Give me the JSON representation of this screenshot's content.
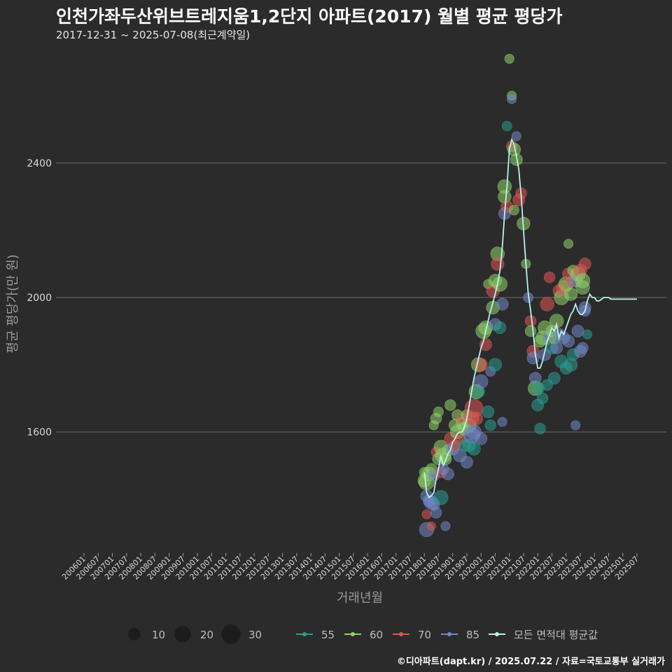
{
  "title": "인천가좌두산위브트레지움1,2단지 아파트(2017) 월별 평균 평당가",
  "subtitle": "2017-12-31 ~ 2025-07-08(최근계약일)",
  "credit": "©디아파트(dapt.kr) / 2025.07.22 / 자료=국토교통부 실거래가",
  "chart_data": {
    "type": "scatter",
    "xlabel": "거래년월",
    "ylabel": "평균 평당가(만 원)",
    "ylim": [
      1240,
      2760
    ],
    "xlim": [
      "2006-01",
      "2025-07"
    ],
    "yticks": [
      1600,
      2000,
      2400
    ],
    "xticks": [
      "200601",
      "200607",
      "200701",
      "200707",
      "200801",
      "200807",
      "200901",
      "200907",
      "201001",
      "201007",
      "201101",
      "201107",
      "201201",
      "201207",
      "201301",
      "201307",
      "201401",
      "201407",
      "201501",
      "201507",
      "201601",
      "201607",
      "201701",
      "201707",
      "201801",
      "201807",
      "201901",
      "201907",
      "202001",
      "202007",
      "202101",
      "202107",
      "202201",
      "202207",
      "202301",
      "202307",
      "202401",
      "202407",
      "202501",
      "202507"
    ],
    "grid": true,
    "legend_position": "bottom",
    "size_legend": {
      "values": [
        10,
        20,
        30
      ]
    },
    "series_colors": {
      "55": "#2a9d8f",
      "60": "#8fd16a",
      "70": "#e05656",
      "85": "#7388c9",
      "avg": "#b9f3ee"
    },
    "legend_series": [
      {
        "key": "55",
        "label": "55"
      },
      {
        "key": "60",
        "label": "60"
      },
      {
        "key": "70",
        "label": "70"
      },
      {
        "key": "85",
        "label": "85"
      },
      {
        "key": "avg",
        "label": "모든 면적대 평균값"
      }
    ],
    "average_line": {
      "x": [
        "2018-01",
        "2018-02",
        "2018-03",
        "2018-04",
        "2018-05",
        "2018-06",
        "2018-07",
        "2018-08",
        "2018-09",
        "2018-10",
        "2018-11",
        "2018-12",
        "2019-01",
        "2019-02",
        "2019-03",
        "2019-04",
        "2019-05",
        "2019-06",
        "2019-07",
        "2019-08",
        "2019-09",
        "2019-10",
        "2019-11",
        "2019-12",
        "2020-01",
        "2020-02",
        "2020-03",
        "2020-04",
        "2020-05",
        "2020-06",
        "2020-07",
        "2020-08",
        "2020-09",
        "2020-10",
        "2020-11",
        "2020-12",
        "2021-01",
        "2021-02",
        "2021-03",
        "2021-04",
        "2021-05",
        "2021-06",
        "2021-07",
        "2021-08",
        "2021-09",
        "2021-10",
        "2021-11",
        "2021-12",
        "2022-01",
        "2022-02",
        "2022-03",
        "2022-04",
        "2022-05",
        "2022-06",
        "2022-07",
        "2022-08",
        "2022-09",
        "2022-10",
        "2022-11",
        "2022-12",
        "2023-01",
        "2023-02",
        "2023-03",
        "2023-04",
        "2023-05",
        "2023-06",
        "2023-07",
        "2023-08",
        "2023-09",
        "2023-10",
        "2023-11",
        "2023-12",
        "2024-01",
        "2024-02",
        "2024-03",
        "2024-04",
        "2024-05",
        "2024-06",
        "2024-07",
        "2024-08",
        "2024-09",
        "2024-10",
        "2024-11",
        "2024-12",
        "2025-01",
        "2025-02",
        "2025-03",
        "2025-04",
        "2025-05",
        "2025-06",
        "2025-07"
      ],
      "y": [
        1480,
        1420,
        1405,
        1410,
        1420,
        1460,
        1490,
        1530,
        1500,
        1515,
        1535,
        1545,
        1570,
        1580,
        1595,
        1600,
        1600,
        1615,
        1640,
        1680,
        1720,
        1760,
        1790,
        1820,
        1850,
        1870,
        1900,
        1930,
        1960,
        1985,
        2010,
        2040,
        2080,
        2150,
        2250,
        2330,
        2440,
        2470,
        2455,
        2420,
        2380,
        2300,
        2200,
        2100,
        2010,
        1960,
        1900,
        1830,
        1790,
        1790,
        1810,
        1840,
        1870,
        1890,
        1910,
        1900,
        1920,
        1880,
        1900,
        1890,
        1910,
        1930,
        1950,
        1960,
        1980,
        1960,
        1950,
        1950,
        1960,
        1990,
        2010,
        2000,
        2000,
        1990,
        1990,
        1995,
        2000,
        2000,
        2000,
        1995,
        1995,
        1995,
        1995,
        1995,
        1995,
        1995,
        1995,
        1995,
        1995,
        1995,
        1995
      ]
    },
    "points": [
      {
        "x": "2018-01",
        "y": 1480,
        "s": 6,
        "g": "60"
      },
      {
        "x": "2018-01",
        "y": 1455,
        "s": 12,
        "g": "60"
      },
      {
        "x": "2018-02",
        "y": 1450,
        "s": 18,
        "g": "60"
      },
      {
        "x": "2018-02",
        "y": 1410,
        "s": 10,
        "g": "85"
      },
      {
        "x": "2018-02",
        "y": 1310,
        "s": 16,
        "g": "85"
      },
      {
        "x": "2018-02",
        "y": 1355,
        "s": 5,
        "g": "70"
      },
      {
        "x": "2018-03",
        "y": 1475,
        "s": 14,
        "g": "60"
      },
      {
        "x": "2018-03",
        "y": 1395,
        "s": 10,
        "g": "85"
      },
      {
        "x": "2018-04",
        "y": 1490,
        "s": 8,
        "g": "60"
      },
      {
        "x": "2018-04",
        "y": 1390,
        "s": 14,
        "g": "85"
      },
      {
        "x": "2018-04",
        "y": 1320,
        "s": 4,
        "g": "70"
      },
      {
        "x": "2018-05",
        "y": 1620,
        "s": 5,
        "g": "60"
      },
      {
        "x": "2018-05",
        "y": 1470,
        "s": 8,
        "g": "85"
      },
      {
        "x": "2018-05",
        "y": 1385,
        "s": 10,
        "g": "85"
      },
      {
        "x": "2018-06",
        "y": 1640,
        "s": 8,
        "g": "60"
      },
      {
        "x": "2018-06",
        "y": 1540,
        "s": 6,
        "g": "70"
      },
      {
        "x": "2018-06",
        "y": 1360,
        "s": 8,
        "g": "85"
      },
      {
        "x": "2018-07",
        "y": 1660,
        "s": 6,
        "g": "60"
      },
      {
        "x": "2018-07",
        "y": 1520,
        "s": 10,
        "g": "60"
      },
      {
        "x": "2018-08",
        "y": 1555,
        "s": 14,
        "g": "60"
      },
      {
        "x": "2018-08",
        "y": 1480,
        "s": 8,
        "g": "70"
      },
      {
        "x": "2018-08",
        "y": 1405,
        "s": 16,
        "g": "55"
      },
      {
        "x": "2018-09",
        "y": 1530,
        "s": 18,
        "g": "60"
      },
      {
        "x": "2018-09",
        "y": 1490,
        "s": 8,
        "g": "85"
      },
      {
        "x": "2018-10",
        "y": 1520,
        "s": 10,
        "g": "60"
      },
      {
        "x": "2018-10",
        "y": 1320,
        "s": 5,
        "g": "85"
      },
      {
        "x": "2018-11",
        "y": 1545,
        "s": 8,
        "g": "60"
      },
      {
        "x": "2018-11",
        "y": 1475,
        "s": 10,
        "g": "85"
      },
      {
        "x": "2018-12",
        "y": 1680,
        "s": 8,
        "g": "60"
      },
      {
        "x": "2018-12",
        "y": 1580,
        "s": 10,
        "g": "70"
      },
      {
        "x": "2019-01",
        "y": 1550,
        "s": 12,
        "g": "85"
      },
      {
        "x": "2019-02",
        "y": 1620,
        "s": 10,
        "g": "60"
      },
      {
        "x": "2019-02",
        "y": 1560,
        "s": 8,
        "g": "70"
      },
      {
        "x": "2019-03",
        "y": 1650,
        "s": 8,
        "g": "60"
      },
      {
        "x": "2019-03",
        "y": 1600,
        "s": 14,
        "g": "60"
      },
      {
        "x": "2019-04",
        "y": 1580,
        "s": 10,
        "g": "70"
      },
      {
        "x": "2019-04",
        "y": 1530,
        "s": 12,
        "g": "85"
      },
      {
        "x": "2019-05",
        "y": 1625,
        "s": 10,
        "g": "60"
      },
      {
        "x": "2019-05",
        "y": 1640,
        "s": 8,
        "g": "70"
      },
      {
        "x": "2019-06",
        "y": 1560,
        "s": 10,
        "g": "55"
      },
      {
        "x": "2019-06",
        "y": 1610,
        "s": 12,
        "g": "60"
      },
      {
        "x": "2019-07",
        "y": 1510,
        "s": 10,
        "g": "85"
      },
      {
        "x": "2019-07",
        "y": 1650,
        "s": 8,
        "g": "60"
      },
      {
        "x": "2019-08",
        "y": 1620,
        "s": 14,
        "g": "60"
      },
      {
        "x": "2019-08",
        "y": 1560,
        "s": 12,
        "g": "55"
      },
      {
        "x": "2019-09",
        "y": 1640,
        "s": 16,
        "g": "70"
      },
      {
        "x": "2019-09",
        "y": 1590,
        "s": 20,
        "g": "85"
      },
      {
        "x": "2019-10",
        "y": 1670,
        "s": 28,
        "g": "70"
      },
      {
        "x": "2019-10",
        "y": 1600,
        "s": 16,
        "g": "85"
      },
      {
        "x": "2019-10",
        "y": 1550,
        "s": 12,
        "g": "55"
      },
      {
        "x": "2019-11",
        "y": 1720,
        "s": 16,
        "g": "60"
      },
      {
        "x": "2019-11",
        "y": 1640,
        "s": 12,
        "g": "70"
      },
      {
        "x": "2019-12",
        "y": 1800,
        "s": 16,
        "g": "60"
      },
      {
        "x": "2019-12",
        "y": 1720,
        "s": 10,
        "g": "55"
      },
      {
        "x": "2020-01",
        "y": 1800,
        "s": 12,
        "g": "70"
      },
      {
        "x": "2020-01",
        "y": 1750,
        "s": 14,
        "g": "85"
      },
      {
        "x": "2020-01",
        "y": 1580,
        "s": 10,
        "g": "85"
      },
      {
        "x": "2020-02",
        "y": 1900,
        "s": 18,
        "g": "60"
      },
      {
        "x": "2020-03",
        "y": 1910,
        "s": 14,
        "g": "60"
      },
      {
        "x": "2020-03",
        "y": 1860,
        "s": 10,
        "g": "70"
      },
      {
        "x": "2020-04",
        "y": 2040,
        "s": 5,
        "g": "60"
      },
      {
        "x": "2020-04",
        "y": 1660,
        "s": 10,
        "g": "55"
      },
      {
        "x": "2020-05",
        "y": 1780,
        "s": 6,
        "g": "85"
      },
      {
        "x": "2020-05",
        "y": 1620,
        "s": 8,
        "g": "55"
      },
      {
        "x": "2020-06",
        "y": 1970,
        "s": 12,
        "g": "60"
      },
      {
        "x": "2020-06",
        "y": 2020,
        "s": 12,
        "g": "70"
      },
      {
        "x": "2020-07",
        "y": 2050,
        "s": 12,
        "g": "60"
      },
      {
        "x": "2020-07",
        "y": 1920,
        "s": 10,
        "g": "85"
      },
      {
        "x": "2020-07",
        "y": 1800,
        "s": 12,
        "g": "55"
      },
      {
        "x": "2020-08",
        "y": 2130,
        "s": 14,
        "g": "60"
      },
      {
        "x": "2020-08",
        "y": 2100,
        "s": 12,
        "g": "70"
      },
      {
        "x": "2020-09",
        "y": 2040,
        "s": 16,
        "g": "60"
      },
      {
        "x": "2020-09",
        "y": 1910,
        "s": 10,
        "g": "55"
      },
      {
        "x": "2020-10",
        "y": 1980,
        "s": 10,
        "g": "85"
      },
      {
        "x": "2020-10",
        "y": 1630,
        "s": 5,
        "g": "85"
      },
      {
        "x": "2020-11",
        "y": 2330,
        "s": 14,
        "g": "60"
      },
      {
        "x": "2020-11",
        "y": 2300,
        "s": 12,
        "g": "60"
      },
      {
        "x": "2020-11",
        "y": 2250,
        "s": 10,
        "g": "85"
      },
      {
        "x": "2020-12",
        "y": 2270,
        "s": 10,
        "g": "70"
      },
      {
        "x": "2020-12",
        "y": 2510,
        "s": 6,
        "g": "55"
      },
      {
        "x": "2021-01",
        "y": 2710,
        "s": 5,
        "g": "60"
      },
      {
        "x": "2021-02",
        "y": 2450,
        "s": 8,
        "g": "70"
      },
      {
        "x": "2021-02",
        "y": 2600,
        "s": 5,
        "g": "60"
      },
      {
        "x": "2021-02",
        "y": 2590,
        "s": 5,
        "g": "85"
      },
      {
        "x": "2021-03",
        "y": 2440,
        "s": 12,
        "g": "60"
      },
      {
        "x": "2021-03",
        "y": 2260,
        "s": 6,
        "g": "60"
      },
      {
        "x": "2021-04",
        "y": 2410,
        "s": 10,
        "g": "60"
      },
      {
        "x": "2021-04",
        "y": 2480,
        "s": 5,
        "g": "85"
      },
      {
        "x": "2021-05",
        "y": 2290,
        "s": 10,
        "g": "70"
      },
      {
        "x": "2021-06",
        "y": 2310,
        "s": 8,
        "g": "70"
      },
      {
        "x": "2021-07",
        "y": 2220,
        "s": 12,
        "g": "60"
      },
      {
        "x": "2021-08",
        "y": 2100,
        "s": 5,
        "g": "60"
      },
      {
        "x": "2021-09",
        "y": 2000,
        "s": 6,
        "g": "85"
      },
      {
        "x": "2021-10",
        "y": 1930,
        "s": 8,
        "g": "70"
      },
      {
        "x": "2021-10",
        "y": 1900,
        "s": 8,
        "g": "60"
      },
      {
        "x": "2021-11",
        "y": 1840,
        "s": 10,
        "g": "70"
      },
      {
        "x": "2021-11",
        "y": 1820,
        "s": 10,
        "g": "85"
      },
      {
        "x": "2021-12",
        "y": 1730,
        "s": 16,
        "g": "60"
      },
      {
        "x": "2021-12",
        "y": 1760,
        "s": 10,
        "g": "85"
      },
      {
        "x": "2022-01",
        "y": 1730,
        "s": 12,
        "g": "55"
      },
      {
        "x": "2022-01",
        "y": 1680,
        "s": 10,
        "g": "55"
      },
      {
        "x": "2022-02",
        "y": 1870,
        "s": 10,
        "g": "60"
      },
      {
        "x": "2022-02",
        "y": 1610,
        "s": 8,
        "g": "55"
      },
      {
        "x": "2022-03",
        "y": 1880,
        "s": 14,
        "g": "60"
      },
      {
        "x": "2022-03",
        "y": 1700,
        "s": 8,
        "g": "55"
      },
      {
        "x": "2022-04",
        "y": 1910,
        "s": 14,
        "g": "60"
      },
      {
        "x": "2022-04",
        "y": 1830,
        "s": 10,
        "g": "85"
      },
      {
        "x": "2022-05",
        "y": 1980,
        "s": 14,
        "g": "70"
      },
      {
        "x": "2022-05",
        "y": 1740,
        "s": 8,
        "g": "55"
      },
      {
        "x": "2022-06",
        "y": 2060,
        "s": 8,
        "g": "70"
      },
      {
        "x": "2022-06",
        "y": 1880,
        "s": 12,
        "g": "85"
      },
      {
        "x": "2022-07",
        "y": 1900,
        "s": 10,
        "g": "60"
      },
      {
        "x": "2022-07",
        "y": 1850,
        "s": 10,
        "g": "55"
      },
      {
        "x": "2022-08",
        "y": 1760,
        "s": 10,
        "g": "55"
      },
      {
        "x": "2022-08",
        "y": 1880,
        "s": 10,
        "g": "60"
      },
      {
        "x": "2022-09",
        "y": 1930,
        "s": 14,
        "g": "60"
      },
      {
        "x": "2022-09",
        "y": 1850,
        "s": 10,
        "g": "85"
      },
      {
        "x": "2022-10",
        "y": 2020,
        "s": 10,
        "g": "70"
      },
      {
        "x": "2022-10",
        "y": 1890,
        "s": 10,
        "g": "85"
      },
      {
        "x": "2022-11",
        "y": 2000,
        "s": 16,
        "g": "60"
      },
      {
        "x": "2022-11",
        "y": 1810,
        "s": 12,
        "g": "55"
      },
      {
        "x": "2022-12",
        "y": 2030,
        "s": 14,
        "g": "70"
      },
      {
        "x": "2022-12",
        "y": 1880,
        "s": 10,
        "g": "85"
      },
      {
        "x": "2023-01",
        "y": 2040,
        "s": 16,
        "g": "60"
      },
      {
        "x": "2023-01",
        "y": 1790,
        "s": 10,
        "g": "55"
      },
      {
        "x": "2023-02",
        "y": 2160,
        "s": 5,
        "g": "60"
      },
      {
        "x": "2023-02",
        "y": 2070,
        "s": 10,
        "g": "70"
      },
      {
        "x": "2023-02",
        "y": 1870,
        "s": 10,
        "g": "85"
      },
      {
        "x": "2023-03",
        "y": 2010,
        "s": 12,
        "g": "60"
      },
      {
        "x": "2023-03",
        "y": 1800,
        "s": 12,
        "g": "55"
      },
      {
        "x": "2023-04",
        "y": 2080,
        "s": 8,
        "g": "60"
      },
      {
        "x": "2023-04",
        "y": 2050,
        "s": 10,
        "g": "70"
      },
      {
        "x": "2023-04",
        "y": 1830,
        "s": 10,
        "g": "55"
      },
      {
        "x": "2023-05",
        "y": 2050,
        "s": 12,
        "g": "85"
      },
      {
        "x": "2023-05",
        "y": 1620,
        "s": 5,
        "g": "85"
      },
      {
        "x": "2023-06",
        "y": 2070,
        "s": 16,
        "g": "60"
      },
      {
        "x": "2023-06",
        "y": 1900,
        "s": 10,
        "g": "85"
      },
      {
        "x": "2023-07",
        "y": 2080,
        "s": 12,
        "g": "70"
      },
      {
        "x": "2023-07",
        "y": 1840,
        "s": 10,
        "g": "85"
      },
      {
        "x": "2023-08",
        "y": 2050,
        "s": 16,
        "g": "60"
      },
      {
        "x": "2023-08",
        "y": 2030,
        "s": 14,
        "g": "60"
      },
      {
        "x": "2023-08",
        "y": 1850,
        "s": 8,
        "g": "85"
      },
      {
        "x": "2023-09",
        "y": 2100,
        "s": 10,
        "g": "70"
      },
      {
        "x": "2023-09",
        "y": 1970,
        "s": 10,
        "g": "85"
      },
      {
        "x": "2023-09",
        "y": 1960,
        "s": 8,
        "g": "85"
      },
      {
        "x": "2023-10",
        "y": 1890,
        "s": 5,
        "g": "55"
      }
    ]
  }
}
